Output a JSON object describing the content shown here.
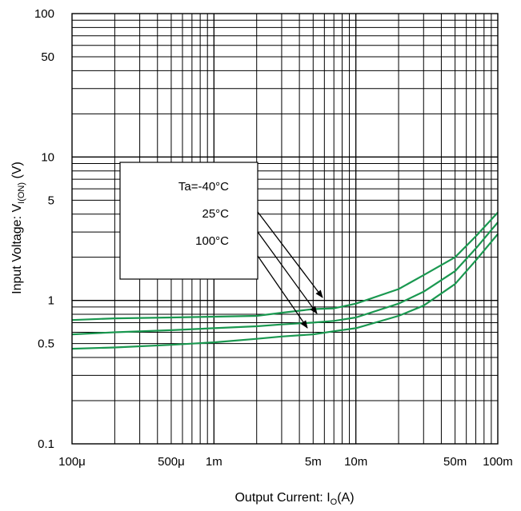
{
  "chart_data": {
    "type": "line",
    "x_scale": "log",
    "y_scale": "log",
    "xlim": [
      0.0001,
      0.1
    ],
    "ylim": [
      0.1,
      100
    ],
    "x_tick_values": [
      0.0001,
      0.0005,
      0.001,
      0.005,
      0.01,
      0.05,
      0.1
    ],
    "x_tick_labels": [
      "100μ",
      "500μ",
      "1m",
      "5m",
      "10m",
      "50m",
      "100m"
    ],
    "y_tick_values": [
      0.1,
      0.5,
      1,
      5,
      10,
      50,
      100
    ],
    "y_tick_labels": [
      "0.1",
      "0.5",
      "1",
      "5",
      "10",
      "50",
      "100"
    ],
    "xlabel": {
      "main": "Output Current: I",
      "sub": "O",
      "tail": "(A)"
    },
    "ylabel": {
      "main": "Input Voltage: V",
      "sub": "I(ON)",
      "tail": " (V)"
    },
    "grid": true,
    "line_color": "#1a9850",
    "legend": {
      "placement": "upper-left",
      "entries": [
        "Ta=-40°C",
        "25°C",
        "100°C"
      ]
    },
    "series": [
      {
        "name": "Ta=-40°C",
        "x": [
          0.0001,
          0.0002,
          0.0005,
          0.001,
          0.002,
          0.003,
          0.005,
          0.007,
          0.01,
          0.02,
          0.03,
          0.05,
          0.07,
          0.1
        ],
        "y": [
          0.73,
          0.75,
          0.76,
          0.77,
          0.78,
          0.82,
          0.87,
          0.88,
          0.95,
          1.2,
          1.5,
          2.0,
          2.8,
          4.1
        ]
      },
      {
        "name": "25°C",
        "x": [
          0.0001,
          0.0002,
          0.0005,
          0.001,
          0.002,
          0.003,
          0.005,
          0.007,
          0.01,
          0.02,
          0.03,
          0.05,
          0.07,
          0.1
        ],
        "y": [
          0.58,
          0.6,
          0.62,
          0.64,
          0.66,
          0.68,
          0.7,
          0.72,
          0.76,
          0.95,
          1.15,
          1.6,
          2.3,
          3.5
        ]
      },
      {
        "name": "100°C",
        "x": [
          0.0001,
          0.0002,
          0.0005,
          0.001,
          0.002,
          0.003,
          0.005,
          0.007,
          0.01,
          0.02,
          0.03,
          0.05,
          0.07,
          0.1
        ],
        "y": [
          0.46,
          0.47,
          0.49,
          0.51,
          0.54,
          0.56,
          0.58,
          0.61,
          0.64,
          0.78,
          0.92,
          1.3,
          1.9,
          2.9
        ]
      }
    ]
  }
}
